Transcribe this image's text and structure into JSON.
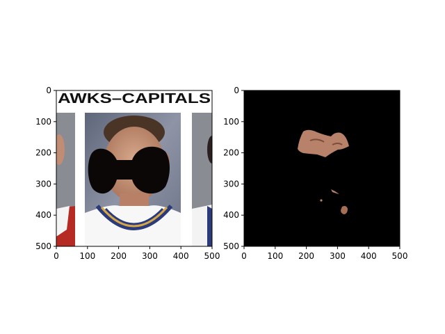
{
  "chart_data": [
    {
      "type": "image",
      "panel": "left",
      "content": "photo of hockey player with black bow-tie shaped mask over face",
      "banner_text": "AWKS–CAPITALS",
      "xlim": [
        0,
        500
      ],
      "ylim": [
        500,
        0
      ],
      "xticks": [
        0,
        100,
        200,
        300,
        400,
        500
      ],
      "yticks": [
        0,
        100,
        200,
        300,
        400,
        500
      ],
      "grid": false
    },
    {
      "type": "image",
      "panel": "right",
      "content": "segmentation result: black background with skin-colored regions",
      "xlim": [
        0,
        500
      ],
      "ylim": [
        500,
        0
      ],
      "xticks": [
        0,
        100,
        200,
        300,
        400,
        500
      ],
      "yticks": [
        0,
        100,
        200,
        300,
        400,
        500
      ],
      "grid": false
    }
  ],
  "colors": {
    "skin": "#b8826a",
    "mask": "#0b0706",
    "jersey_navy": "#2b3a7a",
    "jersey_gold": "#d6a640",
    "backdrop": "#7d8398"
  }
}
